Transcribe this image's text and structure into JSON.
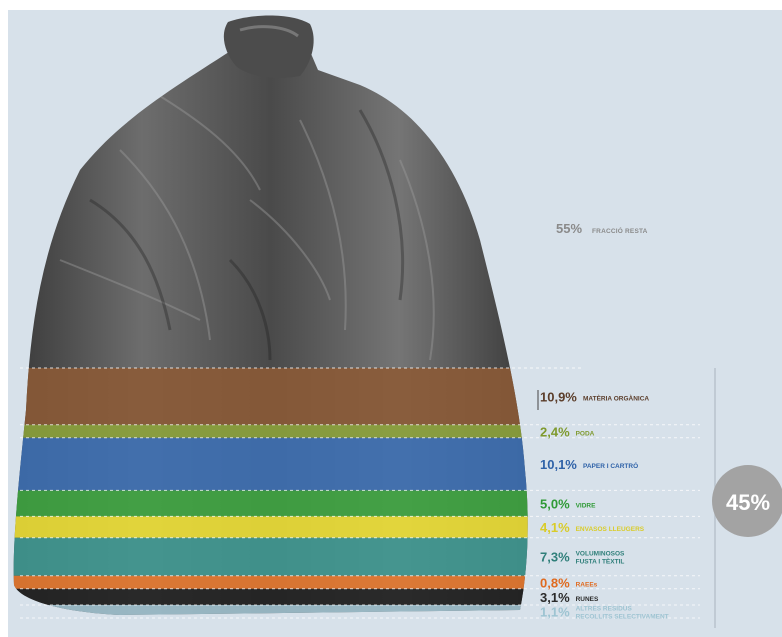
{
  "chart_data": {
    "type": "bar",
    "orientation": "stacked-vertical",
    "title": "",
    "xlabel": "",
    "ylabel": "",
    "rest": {
      "value": 55,
      "display": "55%",
      "label": "FRACCIÓ RESTA",
      "color": "#8a8a8a"
    },
    "selective_total": {
      "value": 45,
      "display": "45%",
      "color": "#a3a3a3"
    },
    "categories": [
      {
        "value": 10.9,
        "display": "10,9%",
        "label_lines": [
          "MATÈRIA ORGÀNICA"
        ],
        "color": "#8c5a36",
        "text_color": "#5b3d2a"
      },
      {
        "value": 2.4,
        "display": "2,4%",
        "label_lines": [
          "PODA"
        ],
        "color": "#8da43a",
        "text_color": "#7f9a2e"
      },
      {
        "value": 10.1,
        "display": "10,1%",
        "label_lines": [
          "PAPER I CARTRÓ"
        ],
        "color": "#3c6fb5",
        "text_color": "#2f62a8"
      },
      {
        "value": 5.0,
        "display": "5,0%",
        "label_lines": [
          "VIDRE"
        ],
        "color": "#3da640",
        "text_color": "#2f9a36"
      },
      {
        "value": 4.1,
        "display": "4,1%",
        "label_lines": [
          "ENVASOS LLEUGERS"
        ],
        "color": "#f1e234",
        "text_color": "#d9cc2a"
      },
      {
        "value": 7.3,
        "display": "7,3%",
        "label_lines": [
          "VOLUMINOSOS",
          "FUSTA I TÈXTIL"
        ],
        "color": "#3f9a93",
        "text_color": "#2f7f7a"
      },
      {
        "value": 0.8,
        "display": "0,8%",
        "label_lines": [
          "RAEEs"
        ],
        "color": "#ea7a2d",
        "text_color": "#e06a1e"
      },
      {
        "value": 3.1,
        "display": "3,1%",
        "label_lines": [
          "RUNES"
        ],
        "color": "#202020",
        "text_color": "#2b2b2b"
      },
      {
        "value": 1.1,
        "display": "1,1%",
        "label_lines": [
          "ALTRES RESIDUS",
          "RECOLLITS SELECTIVAMENT"
        ],
        "color": "#9fc2cf",
        "text_color": "#9ec4d2"
      }
    ],
    "bag_icon": "garbage-bag-icon"
  }
}
